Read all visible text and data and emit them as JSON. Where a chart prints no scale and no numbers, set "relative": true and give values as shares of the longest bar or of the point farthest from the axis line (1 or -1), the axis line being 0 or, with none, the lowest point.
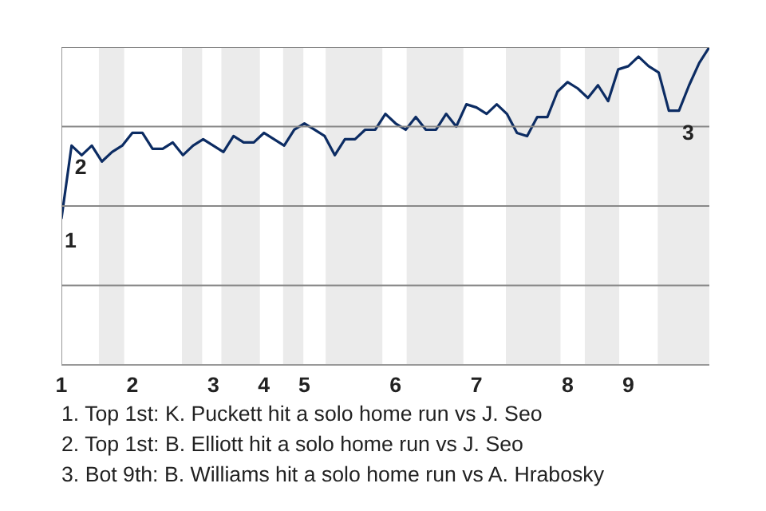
{
  "chart_data": {
    "type": "line",
    "relative": true,
    "categories": [
      "1",
      null,
      null,
      null,
      null,
      null,
      null,
      "2",
      null,
      null,
      null,
      null,
      null,
      null,
      null,
      "3",
      null,
      null,
      null,
      null,
      "4",
      null,
      null,
      null,
      "5",
      null,
      null,
      null,
      null,
      null,
      null,
      null,
      null,
      "6",
      null,
      null,
      null,
      null,
      null,
      null,
      null,
      "7",
      null,
      null,
      null,
      null,
      null,
      null,
      null,
      null,
      "8",
      null,
      null,
      null,
      null,
      null,
      "9",
      null,
      null,
      null,
      null,
      null,
      null,
      null,
      null
    ],
    "series": [
      {
        "color": "#0c2c63",
        "values": [
          0.46,
          0.69,
          0.66,
          0.69,
          0.64,
          0.67,
          0.69,
          0.73,
          0.73,
          0.68,
          0.68,
          0.7,
          0.66,
          0.69,
          0.71,
          0.69,
          0.67,
          0.72,
          0.7,
          0.7,
          0.73,
          0.71,
          0.69,
          0.74,
          0.76,
          0.74,
          0.72,
          0.66,
          0.71,
          0.71,
          0.74,
          0.74,
          0.79,
          0.76,
          0.74,
          0.78,
          0.74,
          0.74,
          0.79,
          0.75,
          0.82,
          0.81,
          0.79,
          0.82,
          0.79,
          0.73,
          0.72,
          0.78,
          0.78,
          0.86,
          0.89,
          0.87,
          0.84,
          0.88,
          0.83,
          0.93,
          0.94,
          0.97,
          0.94,
          0.92,
          0.8,
          0.8,
          0.88,
          0.95,
          1.0
        ]
      }
    ],
    "grid": false,
    "marker": "none",
    "line_style": "solid",
    "ref_lines": [
      {
        "axis": "y",
        "value": 0.25,
        "color": "#888888"
      },
      {
        "axis": "y",
        "value": 0.5,
        "color": "#888888"
      },
      {
        "axis": "y",
        "value": 0.75,
        "color": "#888888"
      },
      {
        "axis": "y",
        "value": 1.0,
        "color": "#888888"
      }
    ],
    "annotations": [
      {
        "text": "1",
        "x": "1",
        "y": 0.46
      },
      {
        "text": "2",
        "y": 0.69
      },
      {
        "text": "3",
        "y": 0.8
      },
      "1. Top 1st: K. Puckett hit a solo home run vs J. Seo",
      "2. Top 1st: B. Elliott hit a solo home run vs J. Seo",
      "3. Bot 9th: B. Williams hit a solo home run vs A. Hrabosky"
    ]
  }
}
